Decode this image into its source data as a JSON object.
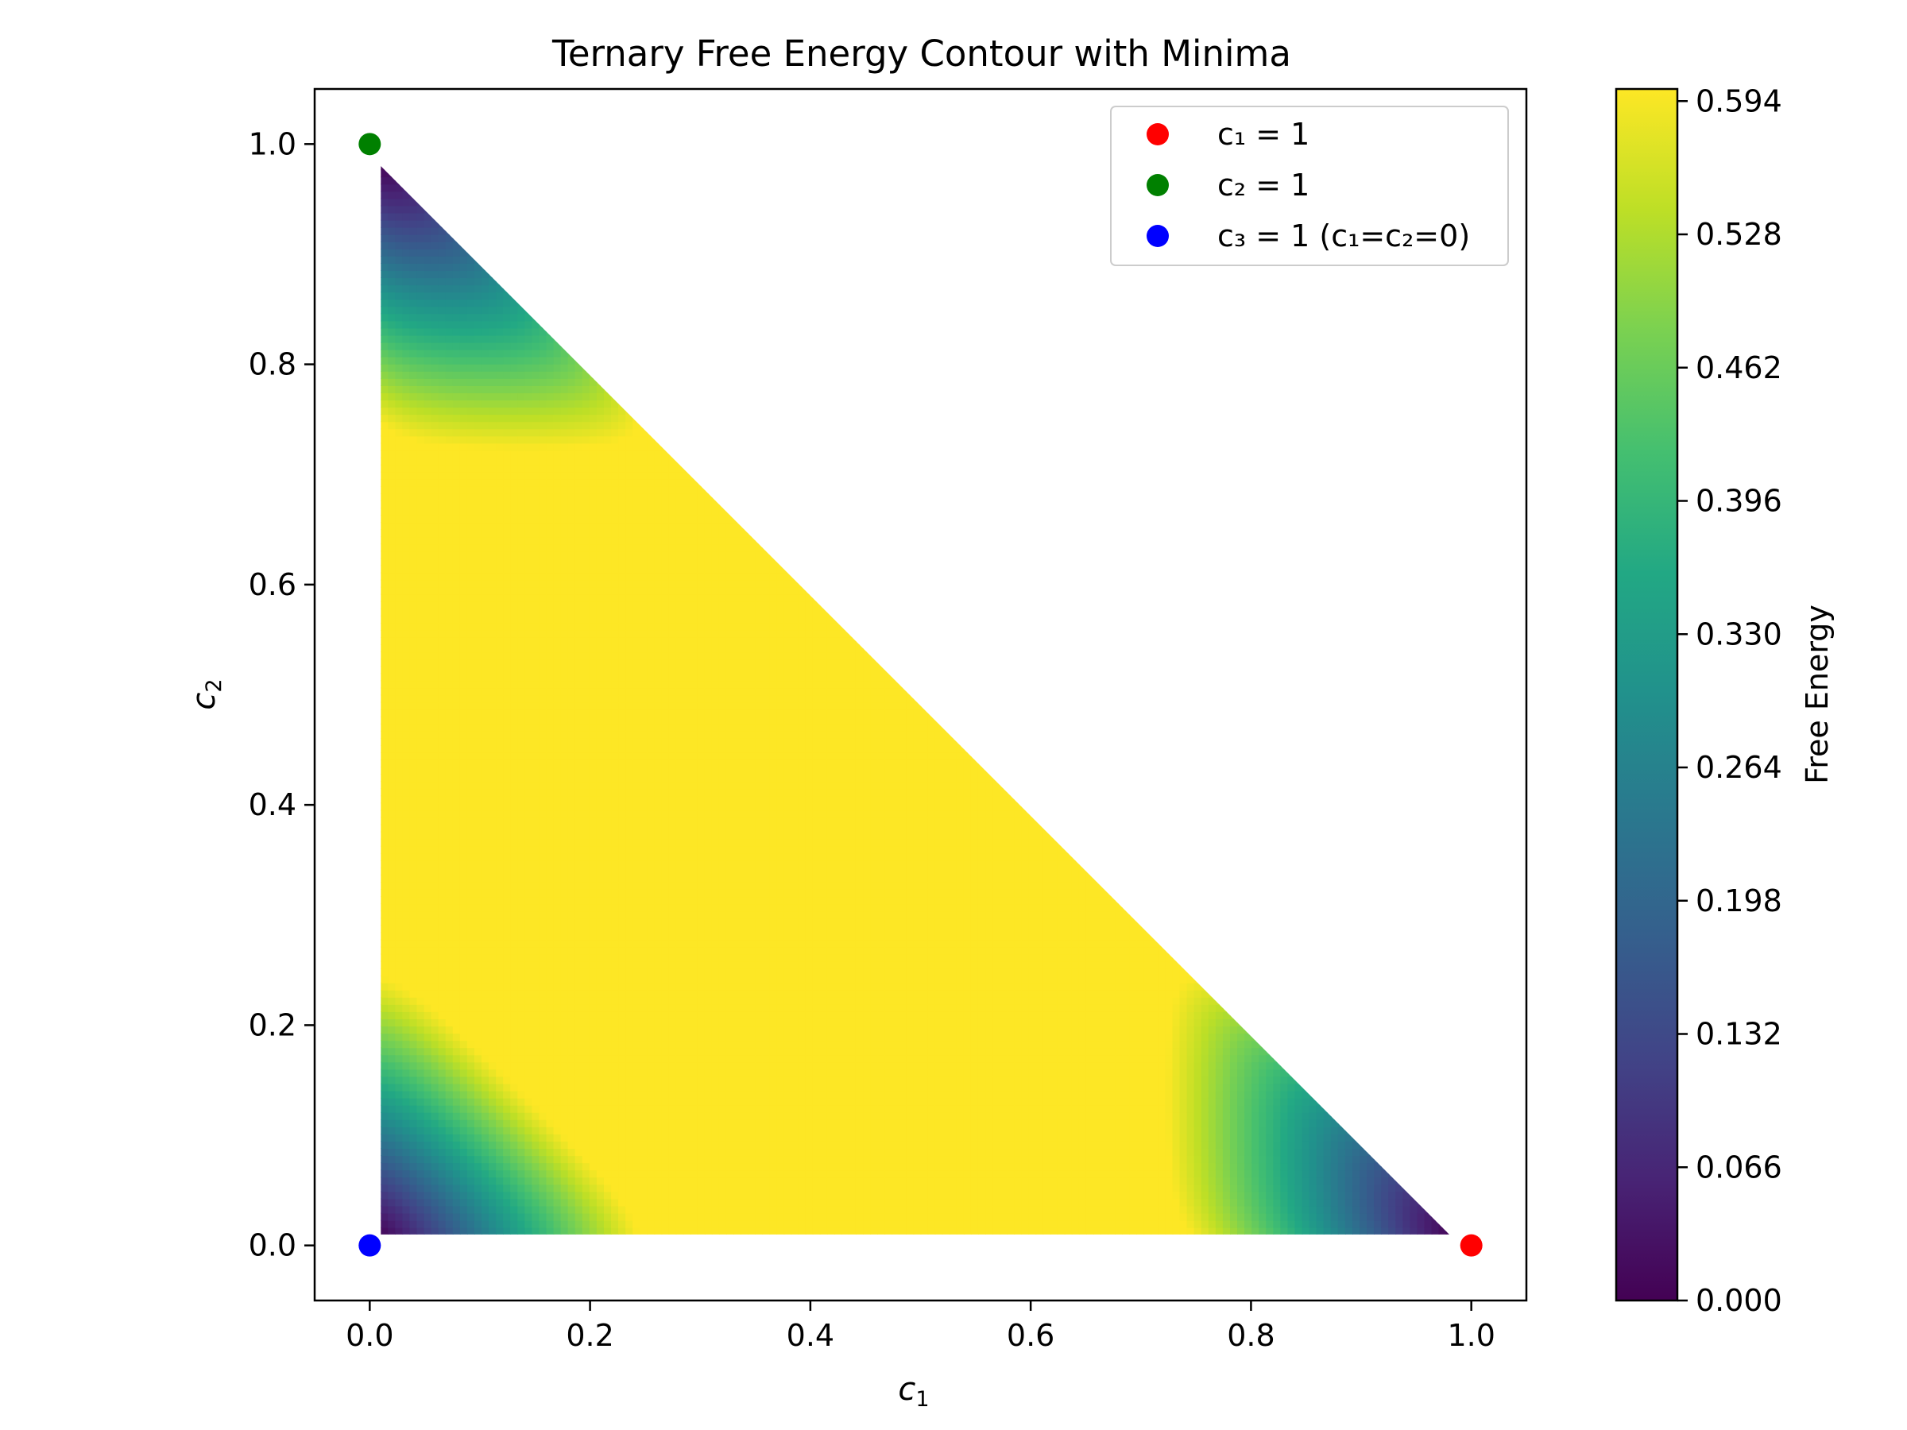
{
  "chart_data": {
    "type": "heatmap",
    "title": "Ternary Free Energy Contour with Minima",
    "xlabel": "c",
    "xlabel_sub": "1",
    "ylabel": "c",
    "ylabel_sub": "2",
    "xlim": [
      -0.05,
      1.05
    ],
    "ylim": [
      -0.05,
      1.05
    ],
    "x_ticks": [
      "0.0",
      "0.2",
      "0.4",
      "0.6",
      "0.8",
      "1.0"
    ],
    "x_tick_values": [
      0.0,
      0.2,
      0.4,
      0.6,
      0.8,
      1.0
    ],
    "y_ticks": [
      "0.0",
      "0.2",
      "0.4",
      "0.6",
      "0.8",
      "1.0"
    ],
    "y_tick_values": [
      0.0,
      0.2,
      0.4,
      0.6,
      0.8,
      1.0
    ],
    "colormap": "viridis",
    "domain": "triangle c1 >= 0.01, c2 >= 0.01, c1 + c2 <= 0.99",
    "colorbar": {
      "label": "Free Energy",
      "min": 0.0,
      "max": 0.6,
      "ticks": [
        "0.000",
        "0.066",
        "0.132",
        "0.198",
        "0.264",
        "0.330",
        "0.396",
        "0.462",
        "0.528",
        "0.594"
      ],
      "tick_values": [
        0.0,
        0.066,
        0.132,
        0.198,
        0.264,
        0.33,
        0.396,
        0.462,
        0.528,
        0.594
      ]
    },
    "points": [
      {
        "name": "c₁ = 1",
        "x": 1.0,
        "y": 0.0,
        "color": "#ff0000"
      },
      {
        "name": "c₂ = 1",
        "x": 0.0,
        "y": 1.0,
        "color": "#008000"
      },
      {
        "name": "c₃ = 1 (c₁=c₂=0)",
        "x": 0.0,
        "y": 0.0,
        "color": "#0000ff"
      }
    ],
    "legend": {
      "placement": "top-right"
    }
  }
}
